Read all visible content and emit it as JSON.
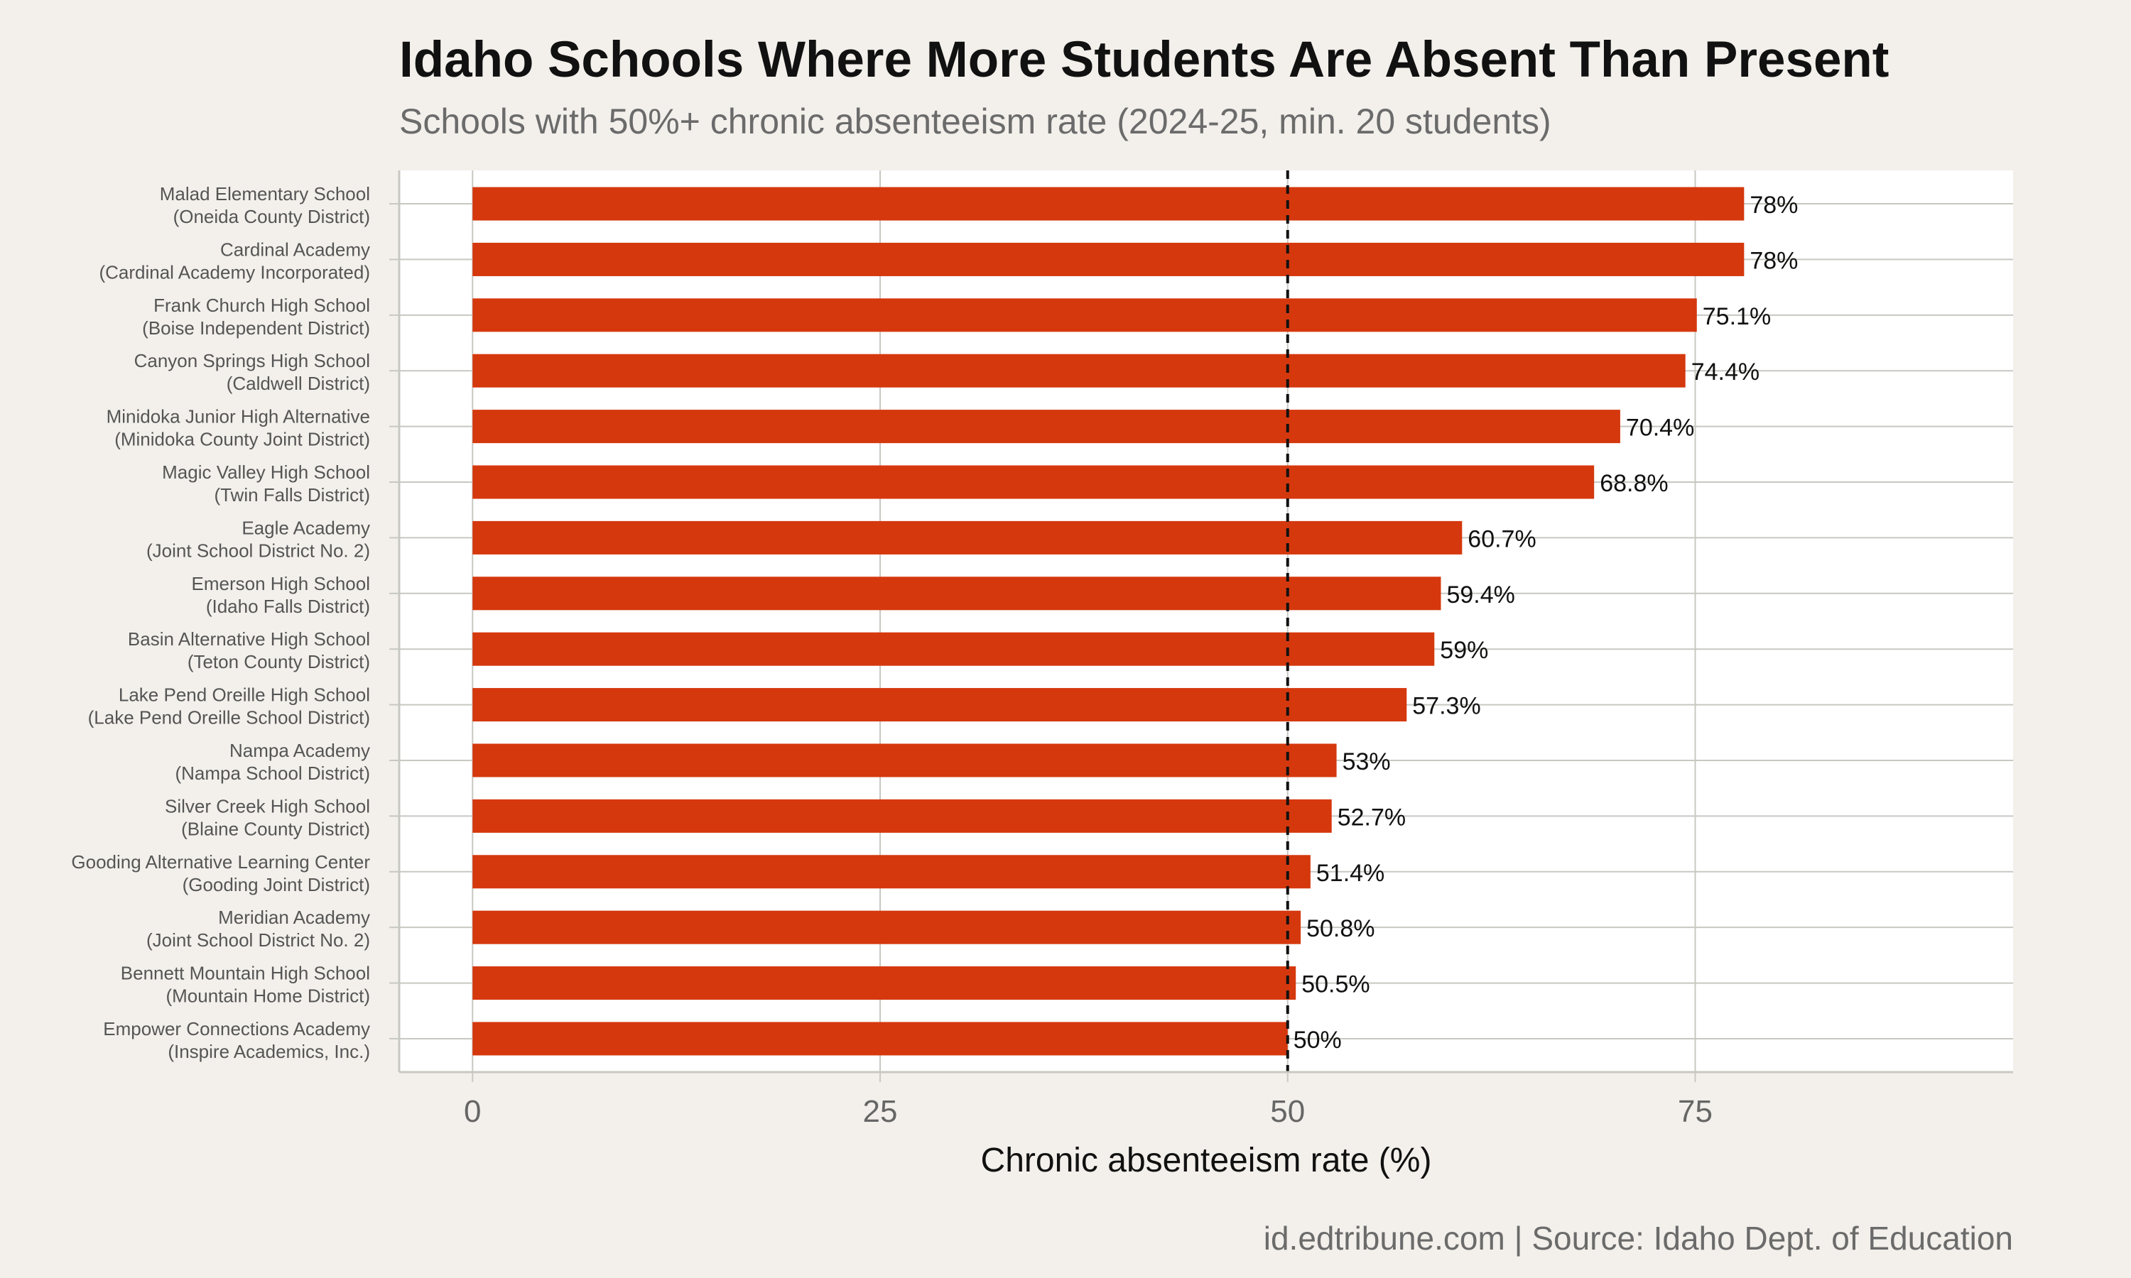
{
  "title": "Idaho Schools Where More Students Are Absent Than Present",
  "subtitle": "Schools with 50%+ chronic absenteeism rate (2024-25, min. 20 students)",
  "caption": "id.edtribune.com | Source: Idaho Dept. of Education",
  "colors": {
    "background": "#f3f0eb",
    "panel": "#ffffff",
    "bar": "#d5380d",
    "grid": "#c8c8c2",
    "reference_line": "#111111"
  },
  "chart_data": {
    "type": "bar",
    "orientation": "horizontal",
    "categories": [
      {
        "name": "Malad Elementary School",
        "district": "(Oneida County District)"
      },
      {
        "name": "Cardinal Academy",
        "district": "(Cardinal Academy Incorporated)"
      },
      {
        "name": "Frank Church High School",
        "district": "(Boise Independent District)"
      },
      {
        "name": "Canyon Springs High School",
        "district": "(Caldwell District)"
      },
      {
        "name": "Minidoka Junior High Alternative",
        "district": "(Minidoka County Joint District)"
      },
      {
        "name": "Magic Valley High School",
        "district": "(Twin Falls District)"
      },
      {
        "name": "Eagle Academy",
        "district": "(Joint School District No. 2)"
      },
      {
        "name": "Emerson High School",
        "district": "(Idaho Falls District)"
      },
      {
        "name": "Basin Alternative High School",
        "district": "(Teton County District)"
      },
      {
        "name": "Lake Pend Oreille High School",
        "district": "(Lake Pend Oreille School District)"
      },
      {
        "name": "Nampa Academy",
        "district": "(Nampa School District)"
      },
      {
        "name": "Silver Creek High School",
        "district": "(Blaine County District)"
      },
      {
        "name": "Gooding Alternative Learning Center",
        "district": "(Gooding Joint District)"
      },
      {
        "name": "Meridian Academy",
        "district": "(Joint School District No. 2)"
      },
      {
        "name": "Bennett Mountain High School",
        "district": "(Mountain Home District)"
      },
      {
        "name": "Empower Connections Academy",
        "district": "(Inspire Academics, Inc.)"
      }
    ],
    "values": [
      78,
      78,
      75.1,
      74.4,
      70.4,
      68.8,
      60.7,
      59.4,
      59,
      57.3,
      53,
      52.7,
      51.4,
      50.8,
      50.5,
      50
    ],
    "value_labels": [
      "78%",
      "78%",
      "75.1%",
      "74.4%",
      "70.4%",
      "68.8%",
      "60.7%",
      "59.4%",
      "59%",
      "57.3%",
      "53%",
      "52.7%",
      "51.4%",
      "50.8%",
      "50.5%",
      "50%"
    ],
    "xlabel": "Chronic absenteeism rate (%)",
    "ylabel": "",
    "xlim": [
      -4.5,
      94.5
    ],
    "xticks": [
      0,
      25,
      50,
      75
    ],
    "xtick_labels": [
      "0",
      "25",
      "50",
      "75"
    ],
    "reference_line": {
      "x": 50,
      "style": "dashed"
    },
    "grid": true,
    "legend": "none"
  }
}
